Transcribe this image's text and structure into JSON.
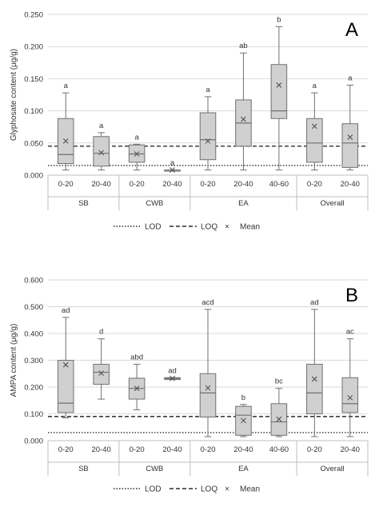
{
  "legend": {
    "lod_label": "LOD",
    "loq_label": "LOQ",
    "mean_label": "Mean",
    "mean_marker": "×"
  },
  "colors": {
    "box_fill": "#d0d0d0",
    "box_stroke": "#707070",
    "grid": "#d9d9d9",
    "text": "#333333",
    "lines": "#000000"
  },
  "chart_data": [
    {
      "type": "box",
      "panel_label": "A",
      "ylabel": "Glyphosate content (μg/g)",
      "ylim": [
        0,
        0.25
      ],
      "yticks": [
        0.0,
        0.05,
        0.1,
        0.15,
        0.2,
        0.25
      ],
      "ytick_labels": [
        "0.000",
        "0.050",
        "0.100",
        "0.150",
        "0.200",
        "0.250"
      ],
      "grid": true,
      "lod": 0.015,
      "loq": 0.045,
      "groups": [
        {
          "name": "SB",
          "categories": [
            "0-20",
            "20-40"
          ]
        },
        {
          "name": "CWB",
          "categories": [
            "0-20",
            "20-40"
          ]
        },
        {
          "name": "EA",
          "categories": [
            "0-20",
            "20-40",
            "40-60"
          ]
        },
        {
          "name": "Overall",
          "categories": [
            "0-20",
            "20-40"
          ]
        }
      ],
      "boxes": [
        {
          "group": "SB",
          "category": "0-20",
          "min": 0.008,
          "q1": 0.018,
          "median": 0.032,
          "q3": 0.088,
          "max": 0.128,
          "mean": 0.053,
          "sig": "a"
        },
        {
          "group": "SB",
          "category": "20-40",
          "min": 0.008,
          "q1": 0.014,
          "median": 0.034,
          "q3": 0.06,
          "max": 0.066,
          "mean": 0.035,
          "sig": "a"
        },
        {
          "group": "CWB",
          "category": "0-20",
          "min": 0.008,
          "q1": 0.02,
          "median": 0.033,
          "q3": 0.047,
          "max": 0.048,
          "mean": 0.033,
          "sig": "a"
        },
        {
          "group": "CWB",
          "category": "20-40",
          "min": 0.008,
          "q1": 0.008,
          "median": 0.008,
          "q3": 0.008,
          "max": 0.008,
          "mean": 0.008,
          "sig": "a"
        },
        {
          "group": "EA",
          "category": "0-20",
          "min": 0.008,
          "q1": 0.024,
          "median": 0.055,
          "q3": 0.097,
          "max": 0.122,
          "mean": 0.053,
          "sig": "a"
        },
        {
          "group": "EA",
          "category": "20-40",
          "min": 0.008,
          "q1": 0.045,
          "median": 0.081,
          "q3": 0.117,
          "max": 0.19,
          "mean": 0.087,
          "sig": "ab"
        },
        {
          "group": "EA",
          "category": "40-60",
          "min": 0.008,
          "q1": 0.088,
          "median": 0.1,
          "q3": 0.172,
          "max": 0.231,
          "mean": 0.14,
          "sig": "b"
        },
        {
          "group": "Overall",
          "category": "0-20",
          "min": 0.008,
          "q1": 0.02,
          "median": 0.05,
          "q3": 0.088,
          "max": 0.128,
          "mean": 0.076,
          "sig": "a"
        },
        {
          "group": "Overall",
          "category": "20-40",
          "min": 0.008,
          "q1": 0.012,
          "median": 0.05,
          "q3": 0.08,
          "max": 0.14,
          "mean": 0.059,
          "sig": "a"
        }
      ]
    },
    {
      "type": "box",
      "panel_label": "B",
      "ylabel": "AMPA content (μg/g)",
      "ylim": [
        0,
        0.6
      ],
      "yticks": [
        0.0,
        0.1,
        0.2,
        0.3,
        0.4,
        0.5,
        0.6
      ],
      "ytick_labels": [
        "0.000",
        "0.100",
        "0.200",
        "0.300",
        "0.400",
        "0.500",
        "0.600"
      ],
      "grid": true,
      "lod": 0.03,
      "loq": 0.09,
      "groups": [
        {
          "name": "SB",
          "categories": [
            "0-20",
            "20-40"
          ]
        },
        {
          "name": "CWB",
          "categories": [
            "0-20",
            "20-40"
          ]
        },
        {
          "name": "EA",
          "categories": [
            "0-20",
            "20-40",
            "40-60"
          ]
        },
        {
          "name": "Overall",
          "categories": [
            "0-20",
            "20-40"
          ]
        }
      ],
      "boxes": [
        {
          "group": "SB",
          "category": "0-20",
          "min": 0.085,
          "q1": 0.105,
          "median": 0.14,
          "q3": 0.3,
          "max": 0.46,
          "mean": 0.283,
          "sig": "ad"
        },
        {
          "group": "SB",
          "category": "20-40",
          "min": 0.155,
          "q1": 0.21,
          "median": 0.255,
          "q3": 0.285,
          "max": 0.38,
          "mean": 0.252,
          "sig": "d"
        },
        {
          "group": "CWB",
          "category": "0-20",
          "min": 0.115,
          "q1": 0.155,
          "median": 0.195,
          "q3": 0.233,
          "max": 0.285,
          "mean": 0.195,
          "sig": "abd"
        },
        {
          "group": "CWB",
          "category": "20-40",
          "min": 0.228,
          "q1": 0.228,
          "median": 0.232,
          "q3": 0.235,
          "max": 0.235,
          "mean": 0.232,
          "sig": "ad"
        },
        {
          "group": "EA",
          "category": "0-20",
          "min": 0.015,
          "q1": 0.088,
          "median": 0.178,
          "q3": 0.25,
          "max": 0.49,
          "mean": 0.197,
          "sig": "acd"
        },
        {
          "group": "EA",
          "category": "20-40",
          "min": 0.015,
          "q1": 0.02,
          "median": 0.095,
          "q3": 0.128,
          "max": 0.135,
          "mean": 0.075,
          "sig": "b"
        },
        {
          "group": "EA",
          "category": "40-60",
          "min": 0.015,
          "q1": 0.02,
          "median": 0.07,
          "q3": 0.138,
          "max": 0.195,
          "mean": 0.08,
          "sig": "bc"
        },
        {
          "group": "Overall",
          "category": "0-20",
          "min": 0.015,
          "q1": 0.1,
          "median": 0.178,
          "q3": 0.285,
          "max": 0.49,
          "mean": 0.23,
          "sig": "ad"
        },
        {
          "group": "Overall",
          "category": "20-40",
          "min": 0.015,
          "q1": 0.105,
          "median": 0.138,
          "q3": 0.235,
          "max": 0.38,
          "mean": 0.16,
          "sig": "ac"
        }
      ]
    }
  ]
}
